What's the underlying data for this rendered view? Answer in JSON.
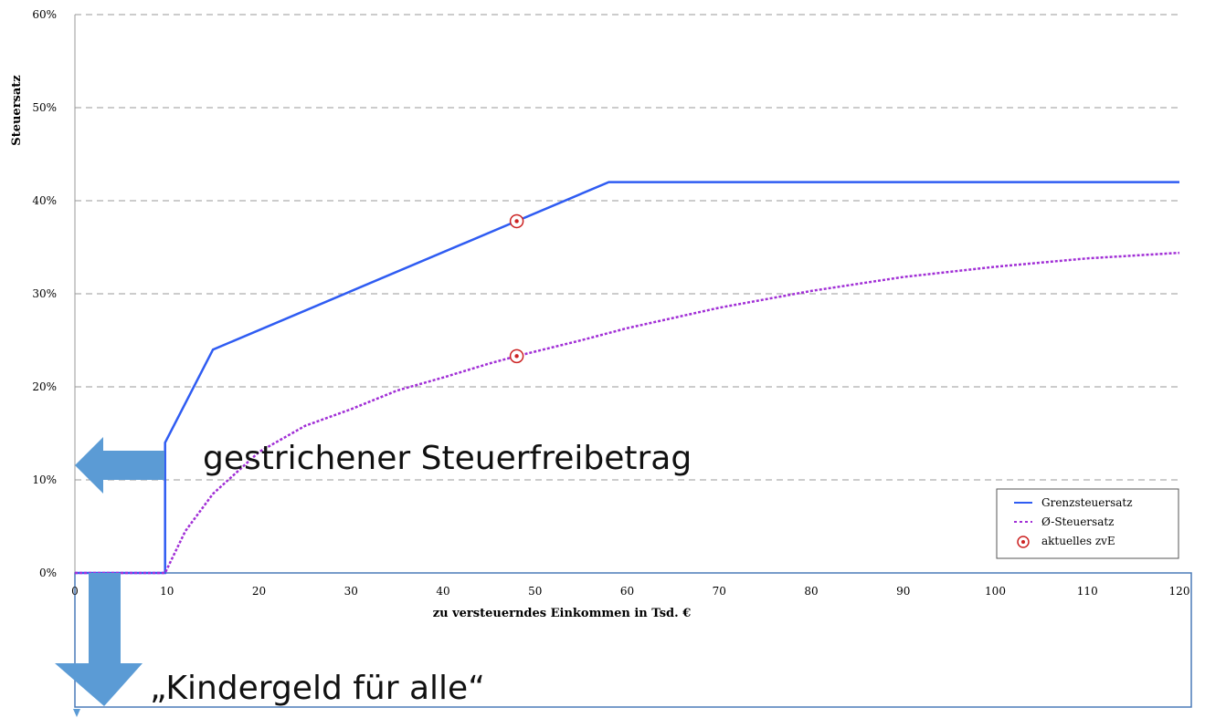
{
  "chart_data": {
    "type": "line",
    "xlabel": "zu versteuerndes Einkommen in Tsd. €",
    "ylabel": "Steuersatz",
    "xlim": [
      0,
      120
    ],
    "ylim": [
      0,
      60
    ],
    "x_ticks": [
      "0",
      "10",
      "20",
      "30",
      "40",
      "50",
      "60",
      "70",
      "80",
      "90",
      "100",
      "110",
      "120"
    ],
    "y_ticks": [
      "0%",
      "10%",
      "20%",
      "30%",
      "40%",
      "50%",
      "60%"
    ],
    "grid": "horizontal dashed",
    "legend_position": "bottom-right",
    "series": [
      {
        "name": "Grenzsteuersatz",
        "style": "solid",
        "color": "#2f5cf2",
        "points": [
          [
            0,
            0
          ],
          [
            9.8,
            0
          ],
          [
            9.8,
            14
          ],
          [
            15,
            24
          ],
          [
            58,
            42
          ],
          [
            120,
            42
          ]
        ]
      },
      {
        "name": "Ø-Steuersatz",
        "style": "dotted",
        "color": "#a12fd6",
        "points": [
          [
            0,
            0
          ],
          [
            9.8,
            0
          ],
          [
            12,
            4.5
          ],
          [
            15,
            8.5
          ],
          [
            20,
            13
          ],
          [
            25,
            15.8
          ],
          [
            30,
            17.6
          ],
          [
            35,
            19.6
          ],
          [
            40,
            21
          ],
          [
            45,
            22.5
          ],
          [
            48,
            23.3
          ],
          [
            55,
            25
          ],
          [
            60,
            26.3
          ],
          [
            70,
            28.5
          ],
          [
            80,
            30.3
          ],
          [
            90,
            31.8
          ],
          [
            100,
            32.9
          ],
          [
            110,
            33.8
          ],
          [
            120,
            34.4
          ]
        ]
      }
    ],
    "markers": {
      "name": "aktuelles zvE",
      "color": "#cc2222",
      "points": [
        [
          48,
          37.8
        ],
        [
          48,
          23.3
        ]
      ]
    }
  },
  "annotations": {
    "freibetrag_text": "gestrichener Steuerfreibetrag",
    "kindergeld_text": "„Kindergeld für alle“"
  },
  "colors": {
    "arrow": "#5b9bd5",
    "box_border": "#4a7ab8",
    "grid": "#999999"
  }
}
